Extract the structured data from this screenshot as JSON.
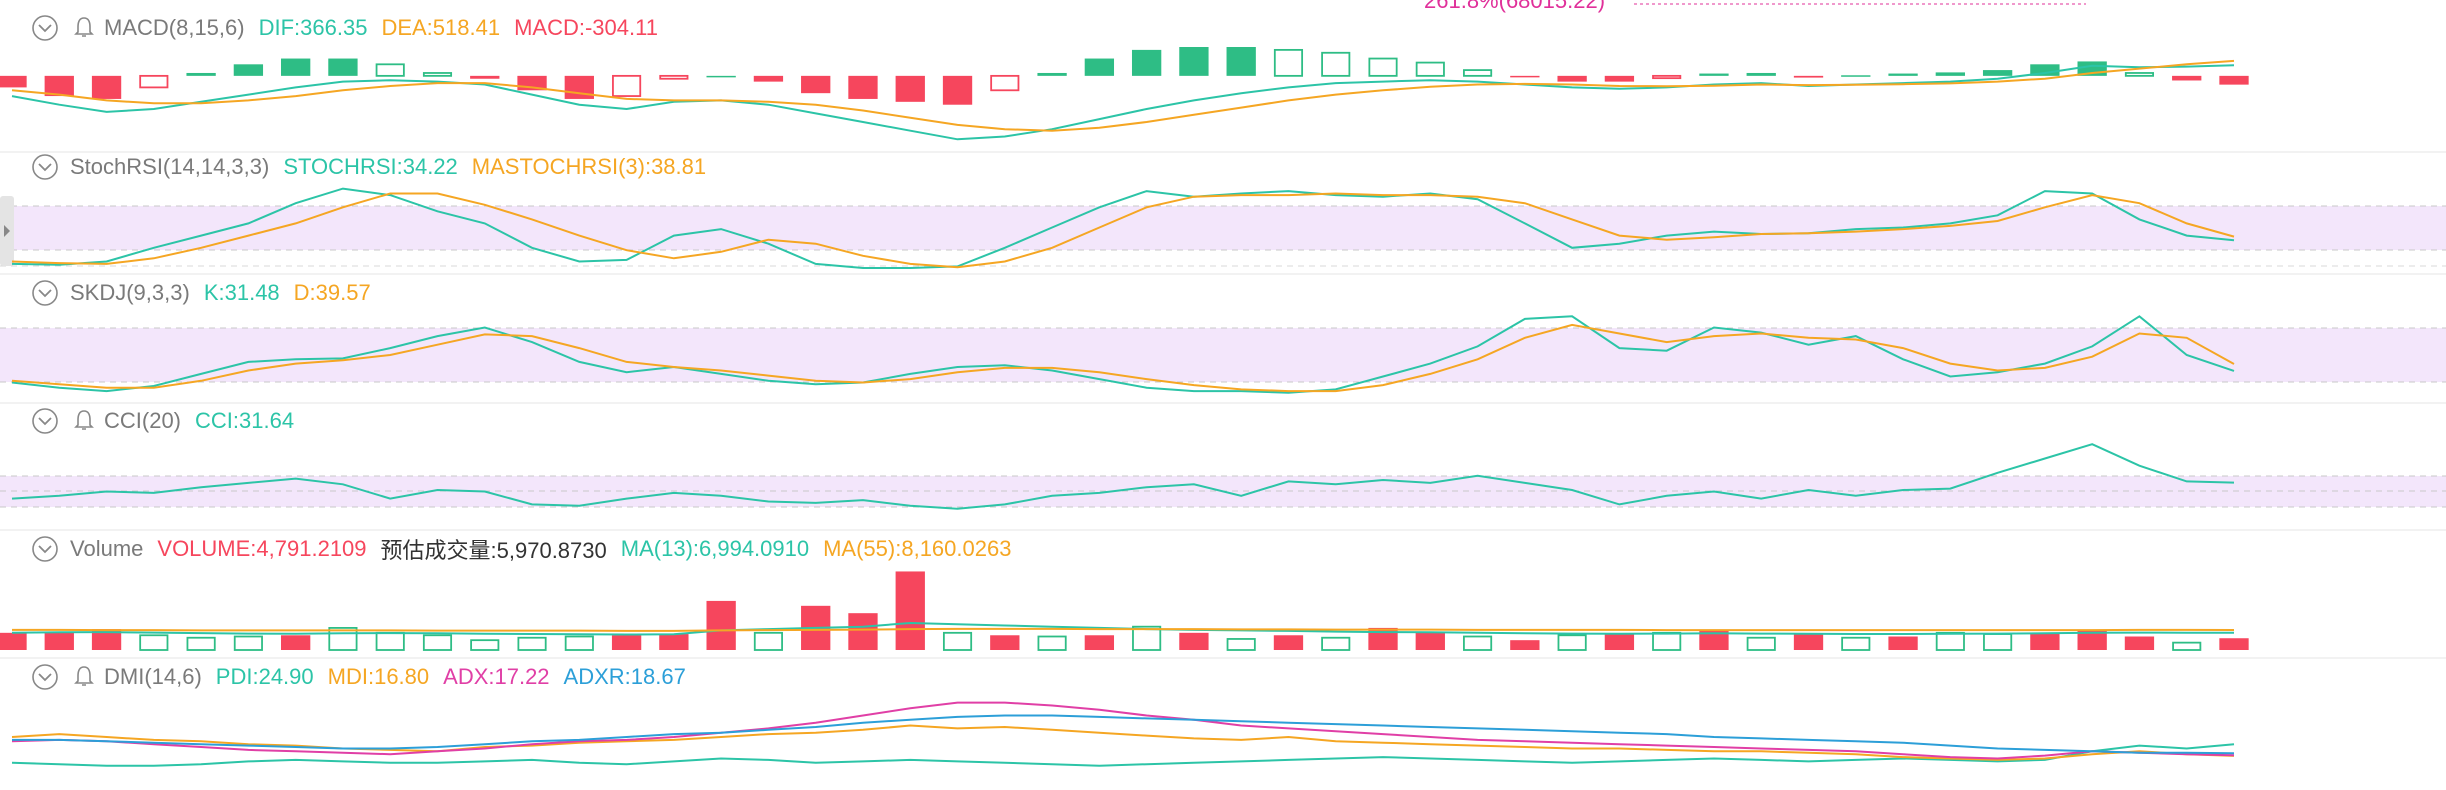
{
  "overlay_label": "261.8%(68015.22)",
  "chart_data": [
    {
      "type": "combo",
      "title": "MACD(8,15,6)",
      "alert_icon": true,
      "ylim": [
        -2500,
        1000
      ],
      "series": [
        {
          "name": "DIF:366.35",
          "type": "line",
          "color": "#2cc4a7",
          "values": [
            -700,
            -1000,
            -1250,
            -1150,
            -900,
            -650,
            -400,
            -200,
            -150,
            -200,
            -300,
            -650,
            -1000,
            -1150,
            -900,
            -850,
            -1000,
            -1300,
            -1600,
            -1900,
            -2200,
            -2100,
            -1850,
            -1500,
            -1150,
            -850,
            -600,
            -400,
            -250,
            -200,
            -150,
            -200,
            -300,
            -400,
            -450,
            -400,
            -300,
            -250,
            -350,
            -300,
            -250,
            -200,
            -100,
            100,
            350,
            300,
            320,
            366.35
          ]
        },
        {
          "name": "DEA:518.41",
          "type": "line",
          "color": "#f5a623",
          "values": [
            -500,
            -650,
            -850,
            -950,
            -950,
            -850,
            -700,
            -500,
            -350,
            -250,
            -250,
            -400,
            -600,
            -800,
            -850,
            -850,
            -900,
            -1000,
            -1200,
            -1450,
            -1700,
            -1850,
            -1900,
            -1800,
            -1600,
            -1350,
            -1100,
            -850,
            -650,
            -500,
            -380,
            -300,
            -280,
            -300,
            -350,
            -360,
            -340,
            -300,
            -320,
            -310,
            -290,
            -260,
            -200,
            -100,
            100,
            250,
            400,
            518.41
          ]
        },
        {
          "name": "MACD:-304.11",
          "type": "bar",
          "color": "#f6465d",
          "up_color": "#2ebd85",
          "down_color": "#f6465d",
          "values": [
            -400,
            -700,
            -800,
            -400,
            100,
            400,
            600,
            600,
            400,
            100,
            -100,
            -500,
            -800,
            -700,
            -100,
            0,
            -200,
            -600,
            -800,
            -900,
            -1000,
            -500,
            100,
            600,
            900,
            1000,
            1000,
            900,
            800,
            600,
            460,
            200,
            -40,
            -200,
            -200,
            -80,
            80,
            100,
            -60,
            20,
            80,
            120,
            200,
            400,
            500,
            100,
            -160,
            -304.11
          ]
        }
      ]
    },
    {
      "type": "line",
      "title": "StochRSI(14,14,3,3)",
      "alert_icon": false,
      "ylim": [
        0,
        100
      ],
      "series": [
        {
          "name": "STOCHRSI:34.22",
          "color": "#2cc4a7",
          "values": [
            5,
            4,
            8,
            25,
            40,
            55,
            80,
            98,
            90,
            70,
            55,
            25,
            8,
            10,
            40,
            48,
            30,
            5,
            0,
            0,
            2,
            25,
            50,
            75,
            95,
            88,
            92,
            95,
            90,
            88,
            92,
            85,
            55,
            25,
            30,
            40,
            45,
            42,
            43,
            48,
            50,
            55,
            65,
            95,
            92,
            60,
            40,
            34.22
          ]
        },
        {
          "name": "MASTOCHRSI(3):38.81",
          "color": "#f5a623",
          "values": [
            8,
            6,
            5,
            12,
            25,
            40,
            55,
            75,
            92,
            92,
            78,
            60,
            40,
            22,
            12,
            20,
            35,
            30,
            15,
            5,
            1,
            8,
            25,
            50,
            75,
            88,
            90,
            90,
            92,
            90,
            90,
            88,
            80,
            60,
            40,
            35,
            38,
            42,
            43,
            45,
            48,
            52,
            58,
            75,
            90,
            80,
            55,
            38.81
          ]
        }
      ]
    },
    {
      "type": "line",
      "title": "SKDJ(9,3,3)",
      "alert_icon": false,
      "ylim": [
        0,
        100
      ],
      "series": [
        {
          "name": "K:31.48",
          "color": "#2cc4a7",
          "values": [
            18,
            12,
            8,
            14,
            28,
            42,
            45,
            46,
            58,
            72,
            82,
            65,
            42,
            30,
            36,
            28,
            20,
            16,
            18,
            28,
            36,
            38,
            32,
            22,
            12,
            8,
            8,
            6,
            10,
            25,
            40,
            60,
            92,
            95,
            58,
            55,
            82,
            76,
            62,
            72,
            45,
            25,
            30,
            40,
            60,
            95,
            50,
            31.48
          ]
        },
        {
          "name": "D:39.57",
          "color": "#f5a623",
          "values": [
            20,
            16,
            12,
            12,
            20,
            32,
            40,
            44,
            50,
            62,
            74,
            72,
            58,
            42,
            36,
            32,
            26,
            20,
            18,
            22,
            30,
            35,
            35,
            30,
            22,
            15,
            10,
            8,
            8,
            15,
            28,
            45,
            70,
            85,
            75,
            65,
            72,
            75,
            70,
            68,
            58,
            40,
            32,
            35,
            48,
            75,
            70,
            39.57
          ]
        }
      ]
    },
    {
      "type": "line",
      "title": "CCI(20)",
      "alert_icon": true,
      "ylim": [
        -250,
        350
      ],
      "series": [
        {
          "name": "CCI:31.64",
          "color": "#2cc4a7",
          "values": [
            -80,
            -60,
            -30,
            -40,
            0,
            30,
            60,
            20,
            -80,
            -20,
            -30,
            -120,
            -130,
            -80,
            -40,
            -60,
            -100,
            -110,
            -90,
            -130,
            -150,
            -120,
            -60,
            -40,
            0,
            20,
            -60,
            40,
            20,
            50,
            30,
            80,
            30,
            -20,
            -120,
            -60,
            -30,
            -80,
            -20,
            -60,
            -20,
            -10,
            100,
            200,
            300,
            150,
            40,
            31.64
          ]
        }
      ]
    },
    {
      "type": "combo",
      "title": "Volume",
      "alert_icon": false,
      "ylim": [
        0,
        33000
      ],
      "notes": [
        "预估成交量:5,970.8730"
      ],
      "series": [
        {
          "name": "VOLUME:4,791.2109",
          "type": "bar",
          "color": "#f6465d",
          "hollow_color": "#2ebd85",
          "colors": [
            "#f6465d",
            "#f6465d",
            "#f6465d",
            "#2ebd85",
            "#2ebd85",
            "#2ebd85",
            "#f6465d",
            "#2ebd85",
            "#2ebd85",
            "#2ebd85",
            "#2ebd85",
            "#2ebd85",
            "#2ebd85",
            "#f6465d",
            "#f6465d",
            "#f6465d",
            "#2ebd85",
            "#f6465d",
            "#f6465d",
            "#f6465d",
            "#2ebd85",
            "#f6465d",
            "#2ebd85",
            "#f6465d",
            "#2ebd85",
            "#f6465d",
            "#2ebd85",
            "#f6465d",
            "#2ebd85",
            "#f6465d",
            "#f6465d",
            "#2ebd85",
            "#f6465d",
            "#2ebd85",
            "#f6465d",
            "#2ebd85",
            "#f6465d",
            "#2ebd85",
            "#f6465d",
            "#2ebd85",
            "#f6465d",
            "#2ebd85",
            "#2ebd85",
            "#f6465d",
            "#f6465d",
            "#f6465d",
            "#2ebd85",
            "#f6465d"
          ],
          "values": [
            7000,
            7000,
            8500,
            6000,
            5000,
            5500,
            6000,
            9000,
            7000,
            6000,
            4000,
            5000,
            5500,
            6000,
            6500,
            20000,
            7000,
            18000,
            15000,
            32000,
            7000,
            6000,
            5500,
            6000,
            9500,
            7000,
            4500,
            6000,
            5000,
            9000,
            7000,
            5500,
            4000,
            6000,
            6500,
            7000,
            8000,
            5000,
            6500,
            5000,
            5500,
            7000,
            6500,
            7000,
            8000,
            5500,
            3000,
            4791.2109
          ]
        },
        {
          "name": "MA(13):6,994.0910",
          "type": "line",
          "color": "#2cc4a7",
          "values": [
            7000,
            7200,
            7300,
            7100,
            6900,
            6700,
            6600,
            6800,
            6900,
            6800,
            6600,
            6500,
            6400,
            6300,
            6400,
            8000,
            8500,
            9000,
            9500,
            11000,
            10500,
            10000,
            9500,
            9000,
            8500,
            8200,
            8000,
            7800,
            7500,
            7300,
            7200,
            7000,
            6800,
            6700,
            6600,
            6700,
            6800,
            6700,
            6600,
            6500,
            6500,
            6600,
            6700,
            6800,
            7000,
            7100,
            7000,
            6994.091
          ]
        },
        {
          "name": "MA(55):8,160.0263",
          "type": "line",
          "color": "#f5a623",
          "values": [
            8200,
            8200,
            8100,
            8100,
            8000,
            8000,
            8000,
            8000,
            8000,
            7900,
            7900,
            7900,
            7900,
            7800,
            7800,
            8000,
            8100,
            8200,
            8300,
            8500,
            8600,
            8600,
            8600,
            8500,
            8500,
            8500,
            8400,
            8400,
            8300,
            8300,
            8300,
            8200,
            8200,
            8200,
            8200,
            8100,
            8100,
            8100,
            8100,
            8100,
            8100,
            8100,
            8100,
            8100,
            8100,
            8200,
            8200,
            8160.0263
          ]
        }
      ]
    },
    {
      "type": "line",
      "title": "DMI(14,6)",
      "alert_icon": true,
      "ylim": [
        0,
        60
      ],
      "series": [
        {
          "name": "PDI:24.90",
          "color": "#2cc4a7",
          "values": [
            12,
            11,
            10,
            10,
            11,
            13,
            14,
            13,
            12,
            12,
            13,
            14,
            12,
            11,
            13,
            15,
            14,
            12,
            13,
            14,
            13,
            12,
            11,
            10,
            11,
            12,
            13,
            14,
            15,
            16,
            15,
            14,
            13,
            12,
            13,
            14,
            15,
            14,
            13,
            14,
            15,
            14,
            13,
            14,
            20,
            24,
            22,
            24.9
          ]
        },
        {
          "name": "MDI:16.80",
          "color": "#f5a623",
          "values": [
            30,
            32,
            30,
            28,
            27,
            25,
            24,
            22,
            21,
            20,
            23,
            24,
            26,
            27,
            28,
            30,
            32,
            33,
            35,
            38,
            36,
            37,
            35,
            33,
            31,
            29,
            28,
            30,
            27,
            26,
            25,
            24,
            23,
            22,
            22,
            21,
            20,
            20,
            19,
            18,
            16,
            15,
            14,
            15,
            18,
            20,
            18,
            16.8
          ]
        },
        {
          "name": "ADX:17.22",
          "color": "#e03fa6",
          "values": [
            27,
            28,
            27,
            25,
            23,
            21,
            20,
            19,
            18,
            20,
            22,
            25,
            27,
            28,
            30,
            33,
            36,
            40,
            45,
            50,
            54,
            54,
            52,
            49,
            45,
            42,
            38,
            36,
            34,
            32,
            30,
            28,
            27,
            26,
            25,
            24,
            23,
            22,
            21,
            20,
            18,
            16,
            15,
            17,
            20,
            19,
            18,
            17.22
          ]
        },
        {
          "name": "ADXR:18.67",
          "color": "#2c9fd8",
          "values": [
            28,
            28,
            27,
            26,
            25,
            24,
            23,
            22,
            22,
            23,
            25,
            27,
            28,
            30,
            32,
            33,
            35,
            37,
            40,
            42,
            44,
            45,
            45,
            44,
            43,
            42,
            41,
            40,
            39,
            38,
            37,
            36,
            35,
            34,
            33,
            32,
            30,
            29,
            28,
            27,
            26,
            24,
            22,
            21,
            20,
            19,
            19,
            18.67
          ]
        }
      ]
    }
  ]
}
